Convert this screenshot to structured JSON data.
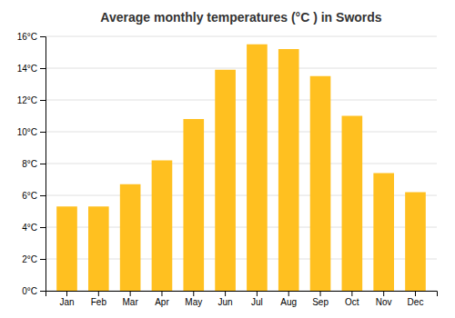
{
  "chart_data": {
    "type": "bar",
    "title": "Average monthly temperatures (°C ) in Swords",
    "categories": [
      "Jan",
      "Feb",
      "Mar",
      "Apr",
      "May",
      "Jun",
      "Jul",
      "Aug",
      "Sep",
      "Oct",
      "Nov",
      "Dec"
    ],
    "values": [
      5.3,
      5.3,
      6.7,
      8.2,
      10.8,
      13.9,
      15.5,
      15.2,
      13.5,
      11.0,
      7.4,
      6.2
    ],
    "color": "#FFC020",
    "ylim": [
      0,
      16
    ],
    "yticks": [
      {
        "value": 0,
        "label": "0°C"
      },
      {
        "value": 2,
        "label": "2°C"
      },
      {
        "value": 4,
        "label": "4°C"
      },
      {
        "value": 6,
        "label": "6°C"
      },
      {
        "value": 8,
        "label": "8°C"
      },
      {
        "value": 10,
        "label": "10°C"
      },
      {
        "value": 12,
        "label": "12°C"
      },
      {
        "value": 14,
        "label": "14°C"
      },
      {
        "value": 16,
        "label": "16°C"
      }
    ],
    "grid": true
  }
}
